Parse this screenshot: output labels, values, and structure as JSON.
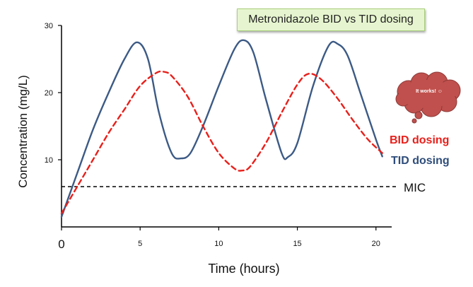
{
  "chart_data": {
    "type": "line",
    "title": "Metronidazole BID vs TID dosing",
    "xlabel": "Time (hours)",
    "ylabel": "Concentration (mg/L)",
    "xlim": [
      0,
      21
    ],
    "ylim": [
      0,
      30
    ],
    "x_ticks": [
      0,
      5,
      10,
      15,
      20
    ],
    "x_tick_labels": [
      "0",
      "5",
      "10",
      "15",
      "20"
    ],
    "y_ticks": [
      10,
      20,
      30
    ],
    "y_tick_labels": [
      "10",
      "20",
      "30"
    ],
    "series": [
      {
        "name": "TID dosing",
        "color": "#3c5a85",
        "style": "solid",
        "x": [
          0,
          1,
          2,
          3,
          4,
          4.8,
          5.5,
          6.2,
          7,
          7.6,
          8.2,
          9,
          10,
          11,
          11.6,
          12.2,
          13,
          14,
          14.4,
          15,
          16,
          17,
          17.6,
          18.2,
          19,
          20,
          20.4
        ],
        "y": [
          1.5,
          8,
          14.5,
          20,
          25,
          27.5,
          25,
          17,
          11,
          10.2,
          11,
          15,
          21,
          26.5,
          27.8,
          26,
          19,
          11,
          10.4,
          12.5,
          21,
          27,
          27.2,
          25.5,
          20,
          13,
          10.5
        ]
      },
      {
        "name": "BID dosing",
        "color": "#e8201b",
        "style": "dashed",
        "x": [
          0,
          1,
          2,
          3,
          4,
          5,
          6,
          6.5,
          7,
          8,
          9,
          10,
          11,
          11.5,
          12,
          13,
          14,
          15,
          15.7,
          16.5,
          17.5,
          18.5,
          19.5,
          20.4
        ],
        "y": [
          2,
          6,
          10,
          14,
          17.5,
          21,
          22.9,
          23.1,
          22.5,
          19.5,
          15,
          11,
          8.7,
          8.4,
          9,
          12.5,
          17,
          21.2,
          22.8,
          22,
          19.3,
          16,
          13,
          11
        ]
      }
    ],
    "reference_lines": [
      {
        "name": "MIC",
        "y": 6,
        "style": "dashed",
        "color": "#000000"
      }
    ],
    "legend": [
      {
        "label": "BID dosing",
        "color": "#e8201b"
      },
      {
        "label": "TID dosing",
        "color": "#2e4d7a"
      }
    ],
    "annotation": {
      "text": "It works! ☺",
      "shape": "cloud",
      "color": "#c0504d"
    }
  }
}
